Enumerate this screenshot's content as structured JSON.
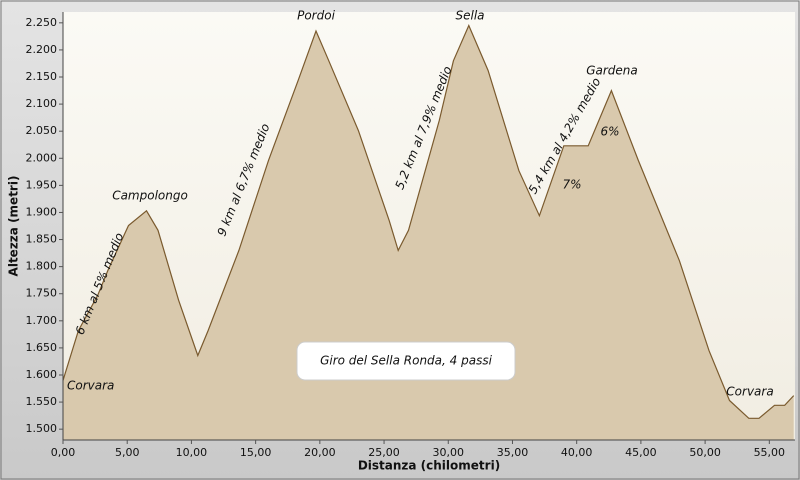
{
  "chart_data": {
    "type": "area",
    "title": "Giro del Sella Ronda, 4 passi",
    "x_label": "Distanza (chilometri)",
    "y_label": "Altezza (metri)",
    "x": [
      0,
      1.2,
      2.7,
      3.5,
      5.1,
      6.5,
      7.4,
      9.0,
      10.5,
      11.3,
      13.7,
      16.0,
      18.3,
      19.7,
      20.7,
      23.0,
      25.4,
      26.1,
      26.9,
      29.3,
      30.4,
      31.6,
      33.1,
      35.5,
      37.1,
      39.0,
      40.9,
      42.7,
      44.8,
      48.0,
      50.3,
      51.9,
      53.4,
      54.2,
      55.4,
      56.2,
      56.9
    ],
    "y": [
      1590,
      1682,
      1747,
      1793,
      1876,
      1903,
      1867,
      1738,
      1636,
      1682,
      1830,
      1996,
      2143,
      2235,
      2180,
      2051,
      1885,
      1830,
      1867,
      2070,
      2180,
      2245,
      2162,
      1977,
      1894,
      2023,
      2023,
      2125,
      1996,
      1811,
      1645,
      1553,
      1520,
      1520,
      1544,
      1544,
      1562
    ],
    "color": "#7a5a2e",
    "fill_color": "#d9c9ad",
    "xlim": [
      0,
      57
    ],
    "ylim": [
      1480,
      2270
    ],
    "xticks": [
      {
        "value": 0,
        "label": "0,00"
      },
      {
        "value": 5,
        "label": "5,00"
      },
      {
        "value": 10,
        "label": "10,00"
      },
      {
        "value": 15,
        "label": "15,00"
      },
      {
        "value": 20,
        "label": "20,00"
      },
      {
        "value": 25,
        "label": "25,00"
      },
      {
        "value": 30,
        "label": "30,00"
      },
      {
        "value": 35,
        "label": "35,00"
      },
      {
        "value": 40,
        "label": "40,00"
      },
      {
        "value": 45,
        "label": "45,00"
      },
      {
        "value": 50,
        "label": "50,00"
      },
      {
        "value": 55,
        "label": "55,00"
      }
    ],
    "yticks": [
      {
        "value": 1500,
        "label": "1.500"
      },
      {
        "value": 1550,
        "label": "1.550"
      },
      {
        "value": 1600,
        "label": "1.600"
      },
      {
        "value": 1650,
        "label": "1.650"
      },
      {
        "value": 1700,
        "label": "1.700"
      },
      {
        "value": 1750,
        "label": "1.750"
      },
      {
        "value": 1800,
        "label": "1.800"
      },
      {
        "value": 1850,
        "label": "1.850"
      },
      {
        "value": 1900,
        "label": "1.900"
      },
      {
        "value": 1950,
        "label": "1.950"
      },
      {
        "value": 2000,
        "label": "2.000"
      },
      {
        "value": 2050,
        "label": "2.050"
      },
      {
        "value": 2100,
        "label": "2.100"
      },
      {
        "value": 2150,
        "label": "2.150"
      },
      {
        "value": 2200,
        "label": "2.200"
      },
      {
        "value": 2250,
        "label": "2.250"
      }
    ],
    "annotations": [
      "Corvara",
      "Campolongo",
      "6 km al 5% medio",
      "9 km al 6,7% medio",
      "Pordoi",
      "Sella",
      "5,2 km al 7,9% medio",
      "Gardena",
      "5,4 km al 4,2% medio",
      "7%",
      "6%",
      "Corvara"
    ]
  }
}
